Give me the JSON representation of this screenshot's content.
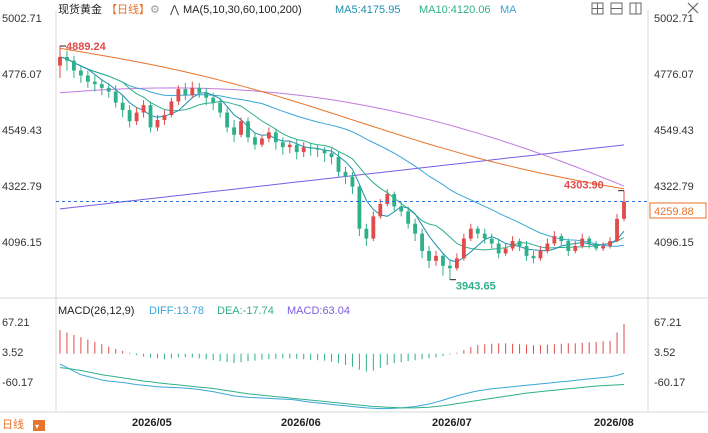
{
  "header": {
    "instrument": "现货黄金",
    "period": "【日线】",
    "ma_label": "MA(5,10,30,60,100,200)",
    "ma5": "MA5:4175.95",
    "ma10": "MA10:4120.06",
    "ma_extra": "MA"
  },
  "macd_header": {
    "label": "MACD(26,12,9)",
    "diff": "DIFF:13.78",
    "dea": "DEA:-17.74",
    "macd": "MACD:63.04"
  },
  "footer": {
    "period_tab": "日线",
    "dates": [
      "2026/05",
      "2026/06",
      "2026/07",
      "2026/08"
    ]
  },
  "toolbar": {
    "icons": [
      "grid-icon",
      "crosshair-icon",
      "layout-icon",
      "close-icon"
    ]
  },
  "colors": {
    "up": "#e14b4b",
    "down": "#2fb08a",
    "ma5": "#1f8fb0",
    "ma10": "#2fb08a",
    "ma30": "#3aa6d8",
    "ma60": "#e8732a",
    "ma100": "#c27be0",
    "ma200": "#7b5ce0",
    "price_line": "#2a6fdb",
    "high_label": "#e14b4b",
    "low_label": "#2fb08a"
  },
  "chart_data": {
    "type": "candlestick",
    "title": "现货黄金【日线】",
    "yticks_main": [
      "5002.71",
      "4776.07",
      "4549.43",
      "4322.79",
      "4096.15"
    ],
    "ylim_main": [
      3943.65,
      5002.71
    ],
    "current_price": "4259.88",
    "high_annotation": "4889.24",
    "low_annotation": "3943.65",
    "last_high_annotation": "4303.90",
    "yticks_macd": [
      "67.21",
      "3.52",
      "-60.17"
    ],
    "ylim_macd": [
      -90,
      80
    ],
    "xticks": [
      "2026/05",
      "2026/06",
      "2026/07",
      "2026/08"
    ],
    "candles": [
      [
        4810,
        4845,
        4760,
        4889.24
      ],
      [
        4845,
        4830,
        4790,
        4870
      ],
      [
        4830,
        4790,
        4760,
        4850
      ],
      [
        4790,
        4770,
        4740,
        4810
      ],
      [
        4770,
        4745,
        4720,
        4790
      ],
      [
        4745,
        4735,
        4705,
        4770
      ],
      [
        4735,
        4720,
        4690,
        4755
      ],
      [
        4720,
        4705,
        4680,
        4740
      ],
      [
        4705,
        4660,
        4640,
        4730
      ],
      [
        4660,
        4630,
        4600,
        4690
      ],
      [
        4630,
        4585,
        4560,
        4650
      ],
      [
        4585,
        4620,
        4570,
        4640
      ],
      [
        4620,
        4650,
        4600,
        4670
      ],
      [
        4650,
        4560,
        4540,
        4665
      ],
      [
        4560,
        4590,
        4545,
        4610
      ],
      [
        4590,
        4610,
        4570,
        4630
      ],
      [
        4610,
        4665,
        4600,
        4680
      ],
      [
        4665,
        4715,
        4650,
        4730
      ],
      [
        4715,
        4690,
        4670,
        4740
      ],
      [
        4690,
        4720,
        4680,
        4745
      ],
      [
        4720,
        4700,
        4680,
        4740
      ],
      [
        4700,
        4680,
        4650,
        4720
      ],
      [
        4680,
        4660,
        4630,
        4700
      ],
      [
        4660,
        4620,
        4600,
        4680
      ],
      [
        4620,
        4560,
        4540,
        4640
      ],
      [
        4560,
        4530,
        4500,
        4590
      ],
      [
        4530,
        4585,
        4520,
        4600
      ],
      [
        4585,
        4520,
        4500,
        4600
      ],
      [
        4520,
        4490,
        4470,
        4540
      ],
      [
        4490,
        4515,
        4480,
        4530
      ],
      [
        4515,
        4540,
        4500,
        4560
      ],
      [
        4540,
        4500,
        4470,
        4555
      ],
      [
        4500,
        4480,
        4450,
        4520
      ],
      [
        4480,
        4490,
        4455,
        4505
      ],
      [
        4490,
        4460,
        4430,
        4510
      ],
      [
        4460,
        4480,
        4440,
        4500
      ],
      [
        4480,
        4475,
        4445,
        4495
      ],
      [
        4475,
        4470,
        4440,
        4490
      ],
      [
        4470,
        4455,
        4420,
        4480
      ],
      [
        4455,
        4440,
        4410,
        4475
      ],
      [
        4440,
        4380,
        4360,
        4460
      ],
      [
        4380,
        4360,
        4330,
        4400
      ],
      [
        4360,
        4320,
        4290,
        4380
      ],
      [
        4320,
        4150,
        4120,
        4330
      ],
      [
        4150,
        4110,
        4080,
        4170
      ],
      [
        4110,
        4200,
        4100,
        4220
      ],
      [
        4200,
        4250,
        4190,
        4270
      ],
      [
        4250,
        4290,
        4240,
        4310
      ],
      [
        4290,
        4240,
        4220,
        4300
      ],
      [
        4240,
        4220,
        4200,
        4260
      ],
      [
        4220,
        4170,
        4150,
        4240
      ],
      [
        4170,
        4130,
        4100,
        4190
      ],
      [
        4130,
        4060,
        4030,
        4150
      ],
      [
        4060,
        4020,
        3990,
        4080
      ],
      [
        4020,
        4040,
        4000,
        4060
      ],
      [
        4040,
        4000,
        3960,
        4050
      ],
      [
        4000,
        3990,
        3943.65,
        4020
      ],
      [
        3990,
        4030,
        3980,
        4050
      ],
      [
        4030,
        4110,
        4020,
        4130
      ],
      [
        4110,
        4150,
        4100,
        4170
      ],
      [
        4150,
        4130,
        4110,
        4160
      ],
      [
        4130,
        4110,
        4090,
        4150
      ],
      [
        4110,
        4090,
        4070,
        4130
      ],
      [
        4090,
        4050,
        4030,
        4110
      ],
      [
        4050,
        4070,
        4040,
        4090
      ],
      [
        4070,
        4100,
        4060,
        4120
      ],
      [
        4100,
        4080,
        4060,
        4110
      ],
      [
        4080,
        4040,
        4020,
        4100
      ],
      [
        4040,
        4030,
        4010,
        4060
      ],
      [
        4030,
        4060,
        4020,
        4080
      ],
      [
        4060,
        4090,
        4050,
        4110
      ],
      [
        4090,
        4120,
        4080,
        4140
      ],
      [
        4120,
        4100,
        4080,
        4130
      ],
      [
        4100,
        4060,
        4040,
        4110
      ],
      [
        4060,
        4080,
        4050,
        4100
      ],
      [
        4080,
        4110,
        4070,
        4130
      ],
      [
        4110,
        4090,
        4070,
        4120
      ],
      [
        4090,
        4070,
        4060,
        4100
      ],
      [
        4070,
        4080,
        4060,
        4095
      ],
      [
        4080,
        4100,
        4070,
        4115
      ],
      [
        4100,
        4190,
        4095,
        4210
      ],
      [
        4190,
        4259.88,
        4180,
        4303.9
      ]
    ],
    "ma_series": [
      {
        "name": "MA5:4175.95"
      },
      {
        "name": "MA10:4120.06"
      }
    ],
    "macd_hist": [
      50,
      45,
      40,
      35,
      30,
      25,
      20,
      15,
      10,
      6,
      2,
      -3,
      -6,
      -8,
      -10,
      -12,
      -10,
      -8,
      -7,
      -8,
      -10,
      -12,
      -14,
      -16,
      -18,
      -20,
      -18,
      -16,
      -15,
      -13,
      -12,
      -11,
      -10,
      -10,
      -11,
      -12,
      -13,
      -14,
      -15,
      -17,
      -20,
      -24,
      -28,
      -34,
      -38,
      -36,
      -30,
      -24,
      -20,
      -18,
      -16,
      -14,
      -12,
      -10,
      -8,
      -5,
      -2,
      2,
      8,
      14,
      18,
      20,
      21,
      22,
      22,
      21,
      20,
      19,
      18,
      18,
      19,
      20,
      21,
      22,
      22,
      23,
      24,
      25,
      26,
      27,
      45,
      63.04
    ],
    "diff_line": [
      40,
      30,
      20,
      10,
      5,
      0,
      -5,
      -8,
      -10,
      -12,
      -15,
      -18,
      -20,
      -22,
      -24,
      -25,
      -26,
      -27,
      -28,
      -30,
      -32,
      -35,
      -38,
      -42,
      -46,
      -50,
      -52,
      -54,
      -55,
      -56,
      -57,
      -58,
      -59,
      -60,
      -62,
      -65,
      -68,
      -70,
      -72,
      -74,
      -76,
      -78,
      -80,
      -82,
      -84,
      -85,
      -86,
      -86,
      -85,
      -84,
      -82,
      -80,
      -77,
      -73,
      -68,
      -62,
      -56,
      -50,
      -45,
      -40,
      -36,
      -33,
      -30,
      -28,
      -26,
      -24,
      -22,
      -20,
      -18,
      -16,
      -14,
      -12,
      -10,
      -8,
      -6,
      -4,
      -2,
      0,
      2,
      4,
      8,
      13.78
    ],
    "dea_line": [
      30,
      28,
      25,
      22,
      18,
      14,
      10,
      7,
      4,
      1,
      -2,
      -5,
      -8,
      -10,
      -13,
      -15,
      -17,
      -19,
      -21,
      -23,
      -25,
      -27,
      -29,
      -32,
      -35,
      -38,
      -41,
      -44,
      -46,
      -48,
      -50,
      -52,
      -54,
      -56,
      -58,
      -60,
      -62,
      -64,
      -66,
      -68,
      -70,
      -72,
      -74,
      -76,
      -78,
      -80,
      -81,
      -82,
      -83,
      -84,
      -84,
      -84,
      -83,
      -82,
      -80,
      -78,
      -75,
      -72,
      -69,
      -66,
      -63,
      -60,
      -57,
      -54,
      -51,
      -48,
      -45,
      -42,
      -40,
      -38,
      -36,
      -34,
      -32,
      -30,
      -28,
      -26,
      -24,
      -22,
      -21,
      -20,
      -19,
      -17.74
    ]
  }
}
